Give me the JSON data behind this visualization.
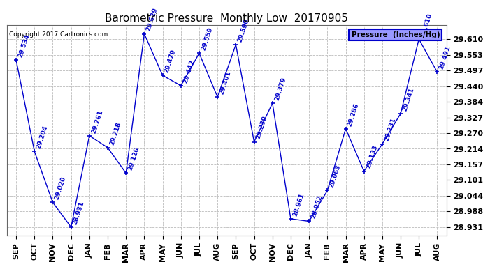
{
  "title": "Barometric Pressure  Monthly Low  20170905",
  "copyright": "Copyright 2017 Cartronics.com",
  "legend_label": "Pressure  (Inches/Hg)",
  "months": [
    "SEP",
    "OCT",
    "NOV",
    "DEC",
    "JAN",
    "FEB",
    "MAR",
    "APR",
    "MAY",
    "JUN",
    "JUL",
    "AUG",
    "SEP",
    "OCT",
    "NOV",
    "DEC",
    "JAN",
    "FEB",
    "MAR",
    "APR",
    "MAY",
    "JUN",
    "JUL",
    "AUG"
  ],
  "values": [
    29.534,
    29.204,
    29.02,
    28.931,
    29.261,
    29.218,
    29.126,
    29.629,
    29.479,
    29.442,
    29.559,
    29.401,
    29.59,
    29.239,
    29.379,
    28.961,
    28.952,
    29.063,
    29.286,
    29.133,
    29.231,
    29.341,
    29.61,
    29.491
  ],
  "line_color": "#0000cc",
  "bg_color": "#ffffff",
  "grid_color": "#bbbbbb",
  "title_fontsize": 11,
  "annot_fontsize": 6.5,
  "tick_fontsize": 8,
  "ytick_values": [
    28.931,
    28.988,
    29.044,
    29.101,
    29.157,
    29.214,
    29.27,
    29.327,
    29.384,
    29.44,
    29.497,
    29.553,
    29.61
  ],
  "ymin": 28.9,
  "ymax": 29.66
}
